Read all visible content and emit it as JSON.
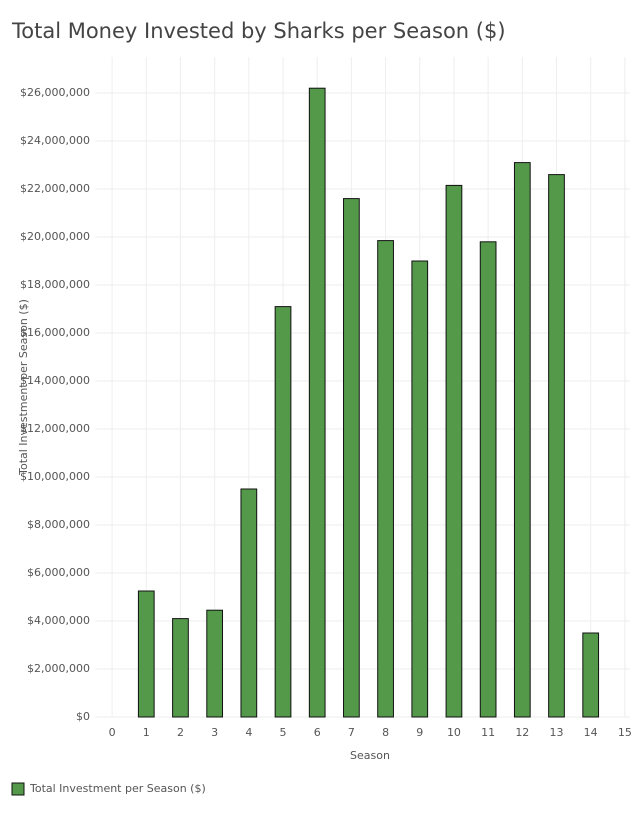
{
  "chart_data": {
    "type": "bar",
    "title": "Total Money Invested by Sharks per Season ($)",
    "x_label": "Season",
    "y_label": "Total Investment per Season ($)",
    "x": [
      1,
      2,
      3,
      4,
      5,
      6,
      7,
      8,
      9,
      10,
      11,
      12,
      13,
      14
    ],
    "series": [
      {
        "name": "Total Investment per Season ($)",
        "color": "#54994a",
        "values": [
          5250000,
          4100000,
          4450000,
          9500000,
          17100000,
          26200000,
          21600000,
          19850000,
          19000000,
          22150000,
          19800000,
          23100000,
          22600000,
          3500000
        ]
      }
    ],
    "xlim": [
      -0.5,
      15.15
    ],
    "xticks": [
      0,
      1,
      2,
      3,
      4,
      5,
      6,
      7,
      8,
      9,
      10,
      11,
      12,
      13,
      14,
      15
    ],
    "ylim": [
      0,
      27500000
    ],
    "yticks": [
      {
        "value": 0,
        "label": "$0"
      },
      {
        "value": 2000000,
        "label": "$2,000,000"
      },
      {
        "value": 4000000,
        "label": "$4,000,000"
      },
      {
        "value": 6000000,
        "label": "$6,000,000"
      },
      {
        "value": 8000000,
        "label": "$8,000,000"
      },
      {
        "value": 10000000,
        "label": "$10,000,000"
      },
      {
        "value": 12000000,
        "label": "$12,000,000"
      },
      {
        "value": 14000000,
        "label": "$14,000,000"
      },
      {
        "value": 16000000,
        "label": "$16,000,000"
      },
      {
        "value": 18000000,
        "label": "$18,000,000"
      },
      {
        "value": 20000000,
        "label": "$20,000,000"
      },
      {
        "value": 22000000,
        "label": "$22,000,000"
      },
      {
        "value": 24000000,
        "label": "$24,000,000"
      },
      {
        "value": 26000000,
        "label": "$26,000,000"
      }
    ],
    "grid": true
  }
}
